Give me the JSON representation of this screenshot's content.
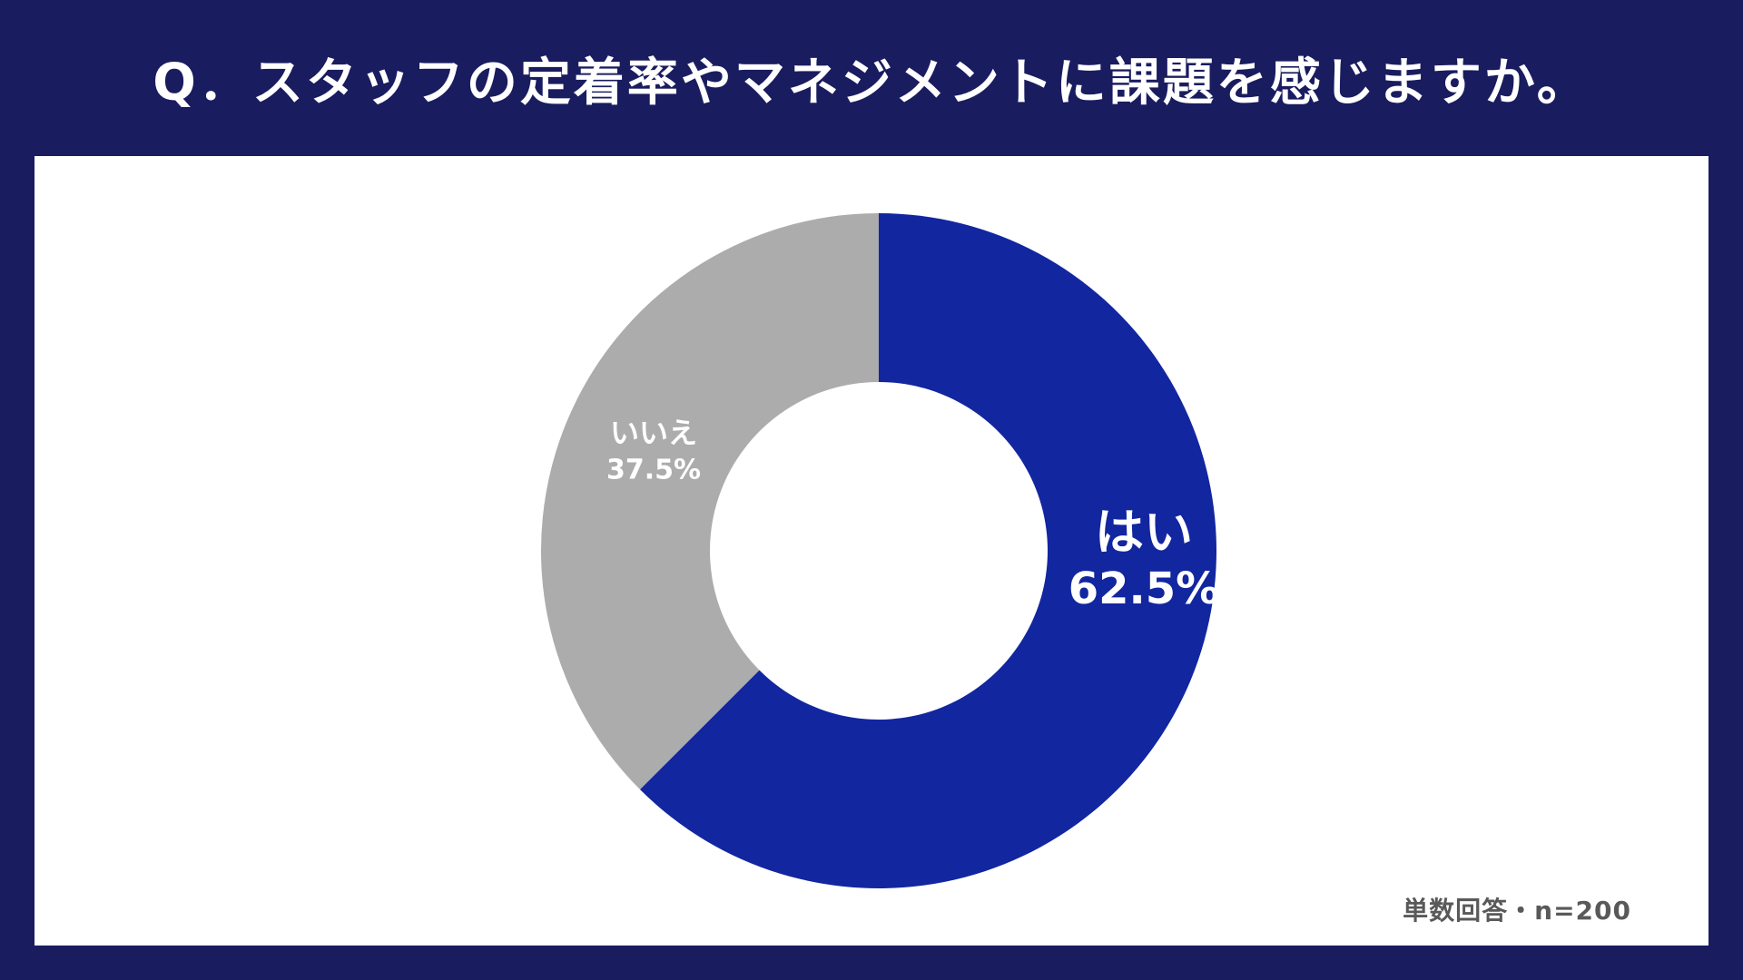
{
  "title": "Q．スタッフの定着率やマネジメントに課題を感じますか。",
  "note": "単数回答・n=200",
  "colors": {
    "background": "#1a1c60",
    "panel": "#ffffff",
    "yes": "#1226a0",
    "no": "#acacac"
  },
  "chart_data": {
    "type": "pie",
    "style": "donut",
    "slices": [
      {
        "label": "はい",
        "value": 62.5,
        "value_label": "62.5%",
        "color": "#1226a0"
      },
      {
        "label": "いいえ",
        "value": 37.5,
        "value_label": "37.5%",
        "color": "#acacac"
      }
    ],
    "start": "12 o'clock",
    "direction": "clockwise",
    "legend": "none"
  }
}
